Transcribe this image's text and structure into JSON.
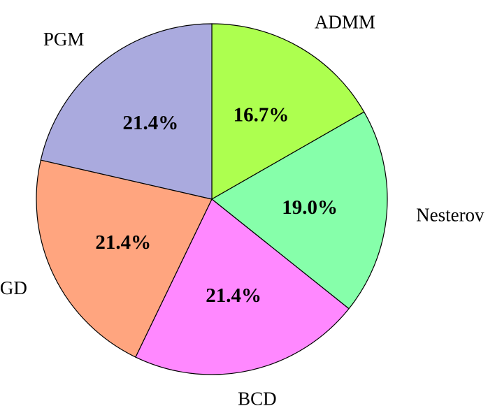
{
  "chart_data": {
    "type": "pie",
    "start_angle_deg": 90,
    "direction": "clockwise",
    "slices": [
      {
        "label": "ADMM",
        "value": 16.7,
        "value_label": "16.7%",
        "color": "#adff4f"
      },
      {
        "label": "Nesterov",
        "value": 19.0,
        "value_label": "19.0%",
        "color": "#86ffaa"
      },
      {
        "label": "BCD",
        "value": 21.4,
        "value_label": "21.4%",
        "color": "#ff88ff"
      },
      {
        "label": "GD",
        "value": 21.4,
        "value_label": "21.4%",
        "color": "#ffa57f"
      },
      {
        "label": "PGM",
        "value": 21.4,
        "value_label": "21.4%",
        "color": "#aaaade"
      }
    ]
  }
}
